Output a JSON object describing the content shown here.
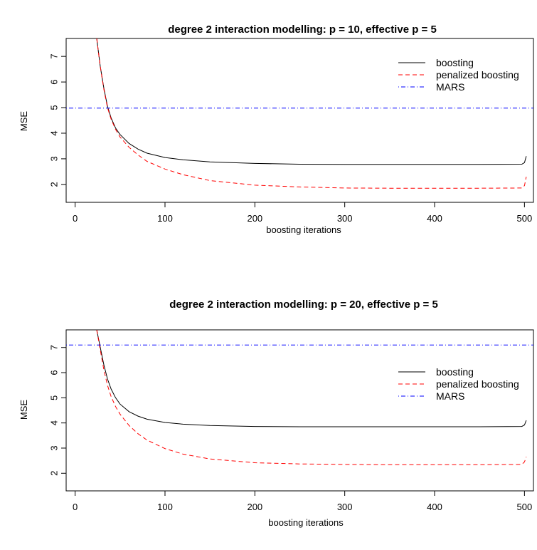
{
  "chart_data": [
    {
      "type": "line",
      "title": "degree 2 interaction modelling: p = 10, effective p = 5",
      "xlabel": "boosting iterations",
      "ylabel": "MSE",
      "xlim": [
        -10,
        510
      ],
      "ylim": [
        1.3,
        7.7
      ],
      "xticks": [
        "0",
        "100",
        "200",
        "300",
        "400",
        "500"
      ],
      "yticks": [
        "2",
        "3",
        "4",
        "5",
        "6",
        "7"
      ],
      "legend_position": "top-right",
      "series": [
        {
          "name": "boosting",
          "color": "#000000",
          "dash": "solid",
          "x": [
            24,
            28,
            32,
            36,
            40,
            45,
            50,
            60,
            70,
            80,
            100,
            120,
            150,
            200,
            250,
            300,
            350,
            400,
            450,
            497,
            500,
            502
          ],
          "y": [
            7.7,
            6.6,
            5.75,
            5.05,
            4.6,
            4.2,
            3.95,
            3.6,
            3.38,
            3.22,
            3.05,
            2.96,
            2.88,
            2.82,
            2.79,
            2.78,
            2.78,
            2.78,
            2.78,
            2.79,
            2.85,
            3.1
          ]
        },
        {
          "name": "penalized boosting",
          "color": "#ff0000",
          "dash": "dashed",
          "x": [
            24,
            28,
            32,
            36,
            40,
            45,
            50,
            60,
            70,
            80,
            100,
            120,
            150,
            200,
            250,
            300,
            350,
            400,
            450,
            497,
            500,
            502
          ],
          "y": [
            7.7,
            6.6,
            5.7,
            5.0,
            4.55,
            4.15,
            3.85,
            3.45,
            3.15,
            2.9,
            2.6,
            2.38,
            2.15,
            1.97,
            1.9,
            1.86,
            1.85,
            1.85,
            1.85,
            1.86,
            1.95,
            2.3
          ]
        },
        {
          "name": "MARS",
          "color": "#0000ff",
          "dash": "dotdash",
          "x": [
            -10,
            510
          ],
          "y": [
            4.98,
            4.98
          ]
        }
      ]
    },
    {
      "type": "line",
      "title": "degree 2 interaction modelling: p = 20, effective p = 5",
      "xlabel": "boosting iterations",
      "ylabel": "MSE",
      "xlim": [
        -10,
        510
      ],
      "ylim": [
        1.3,
        7.7
      ],
      "xticks": [
        "0",
        "100",
        "200",
        "300",
        "400",
        "500"
      ],
      "yticks": [
        "2",
        "3",
        "4",
        "5",
        "6",
        "7"
      ],
      "legend_position": "right",
      "series": [
        {
          "name": "boosting",
          "color": "#000000",
          "dash": "solid",
          "x": [
            24,
            28,
            32,
            36,
            40,
            45,
            50,
            60,
            70,
            80,
            100,
            120,
            150,
            200,
            250,
            300,
            350,
            400,
            450,
            497,
            500,
            502
          ],
          "y": [
            7.7,
            7.0,
            6.3,
            5.75,
            5.35,
            5.0,
            4.75,
            4.45,
            4.27,
            4.15,
            4.02,
            3.95,
            3.9,
            3.86,
            3.85,
            3.85,
            3.85,
            3.85,
            3.85,
            3.86,
            3.92,
            4.1
          ]
        },
        {
          "name": "penalized boosting",
          "color": "#ff0000",
          "dash": "dashed",
          "x": [
            24,
            28,
            32,
            36,
            40,
            45,
            50,
            60,
            70,
            80,
            100,
            120,
            150,
            200,
            250,
            300,
            350,
            400,
            450,
            497,
            500,
            502
          ],
          "y": [
            7.7,
            6.9,
            6.1,
            5.5,
            5.05,
            4.65,
            4.35,
            3.9,
            3.57,
            3.32,
            2.98,
            2.76,
            2.57,
            2.42,
            2.37,
            2.35,
            2.34,
            2.34,
            2.34,
            2.35,
            2.45,
            2.65
          ]
        },
        {
          "name": "MARS",
          "color": "#0000ff",
          "dash": "dotdash",
          "x": [
            -10,
            510
          ],
          "y": [
            7.1,
            7.1
          ]
        }
      ]
    }
  ]
}
